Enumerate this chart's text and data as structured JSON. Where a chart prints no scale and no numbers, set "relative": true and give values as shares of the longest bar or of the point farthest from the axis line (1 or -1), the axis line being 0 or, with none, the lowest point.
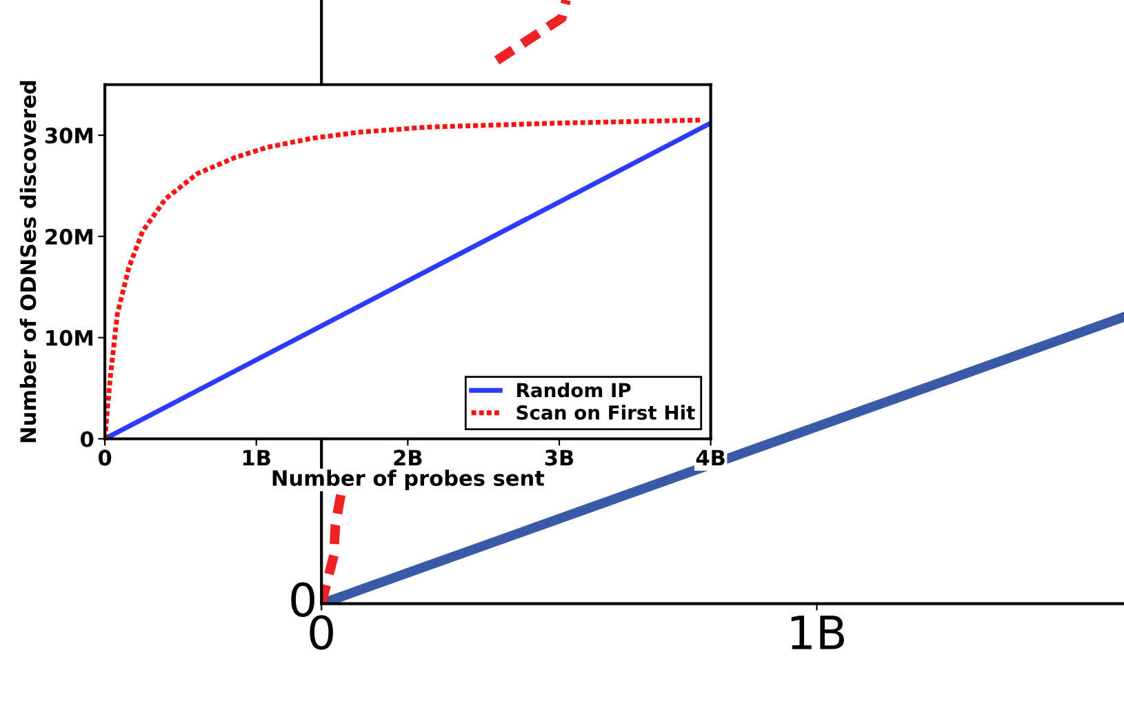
{
  "chart_data": [
    {
      "type": "line",
      "relative": true,
      "xlim": [
        0,
        1.62
      ],
      "xticks": [
        {
          "value": 0,
          "label": "0"
        },
        {
          "value": 1,
          "label": "1B"
        }
      ],
      "tick_labels": "x",
      "legend": false,
      "grid": false,
      "marker": "none",
      "annotations": [
        "0"
      ],
      "series": [
        {
          "color": "#3a5aa8",
          "line_style": "solid",
          "x": [
            0,
            1.62
          ],
          "values": [
            0,
            0.475
          ]
        },
        {
          "color": "#ee2222",
          "line_style": "dashed",
          "x": [
            0,
            0.025,
            0.028,
            0.039,
            0.1,
            0.354,
            0.485,
            0.494
          ],
          "values": [
            0,
            0.08,
            0.13,
            0.18,
            null,
            0.9,
            0.97,
            1.0
          ]
        }
      ]
    },
    {
      "type": "line",
      "xlabel": "Number of probes sent",
      "ylabel": "Number of ODNSes discovered",
      "xlim": [
        0,
        4
      ],
      "ylim": [
        0,
        35
      ],
      "xticks": [
        {
          "value": 0,
          "label": "0"
        },
        {
          "value": 1,
          "label": "1B"
        },
        {
          "value": 2,
          "label": "2B"
        },
        {
          "value": 3,
          "label": "3B"
        },
        {
          "value": 4,
          "label": "4B"
        }
      ],
      "yticks": [
        {
          "value": 0,
          "label": "0"
        },
        {
          "value": 10,
          "label": "10M"
        },
        {
          "value": 20,
          "label": "20M"
        },
        {
          "value": 30,
          "label": "30M"
        }
      ],
      "legend": "bottom right",
      "grid": false,
      "marker": "none",
      "series": [
        {
          "name": "Random IP",
          "color": "#2a3cff",
          "line_style": "solid",
          "x": [
            0,
            4
          ],
          "values": [
            0,
            31.2
          ]
        },
        {
          "name": "Scan on First Hit",
          "color": "#ff1111",
          "line_style": "dotted",
          "x": [
            0,
            0.036,
            0.082,
            0.158,
            0.249,
            0.4,
            0.61,
            0.86,
            1.07,
            1.37,
            1.68,
            2.13,
            3.0,
            3.95
          ],
          "values": [
            0,
            6.1,
            12.3,
            16.9,
            20.5,
            23.7,
            26.2,
            27.8,
            28.8,
            29.7,
            30.3,
            30.8,
            31.2,
            31.5
          ]
        }
      ]
    }
  ]
}
